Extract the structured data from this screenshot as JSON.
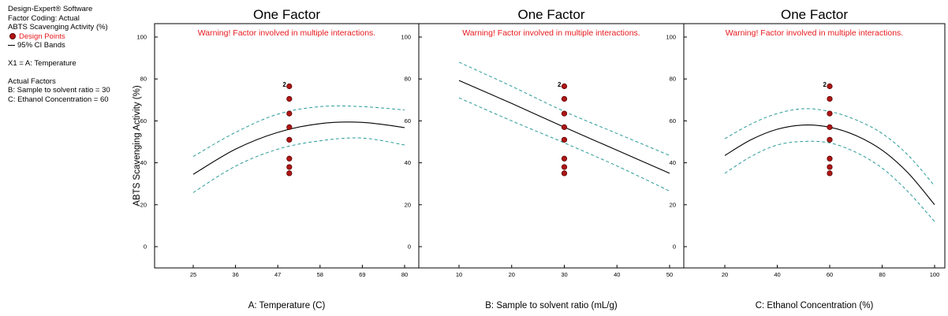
{
  "legend": {
    "software": "Design-Expert® Software",
    "coding": "Factor Coding: Actual",
    "response": "ABTS Scavenging Activity (%)",
    "design_points": "Design Points",
    "ci_bands": "95% CI Bands",
    "x1": "X1 = A: Temperature",
    "actual_factors": "Actual Factors",
    "factor_b": "B: Sample to solvent ratio = 30",
    "factor_c": "C: Ethanol Concentration  = 60"
  },
  "colors": {
    "fit_line": "#000000",
    "ci_band": "#2a9a9a",
    "design_point": "#b01515",
    "warning": "#e8191e"
  },
  "chart_data": [
    {
      "type": "line",
      "title": "One Factor",
      "warning": "Warning! Factor involved in multiple interactions.",
      "xlabel": "A: Temperature (C)",
      "ylabel": "ABTS Scavenging Activity (%)",
      "xlim": [
        25,
        80
      ],
      "ylim": [
        0,
        100
      ],
      "x_ticks": [
        25,
        36,
        47,
        58,
        69,
        80
      ],
      "y_ticks": [
        0,
        20,
        40,
        60,
        80,
        100
      ],
      "series": [
        {
          "role": "fit",
          "x": [
            25,
            36,
            47,
            58,
            69,
            80
          ],
          "y": [
            34.5,
            46.5,
            54.5,
            58.7,
            59.3,
            56.8
          ]
        },
        {
          "role": "ci_upper",
          "x": [
            25,
            36,
            47,
            58,
            69,
            80
          ],
          "y": [
            43.0,
            54.5,
            63.2,
            66.8,
            66.8,
            65.2
          ]
        },
        {
          "role": "ci_lower",
          "x": [
            25,
            36,
            47,
            58,
            69,
            80
          ],
          "y": [
            25.8,
            38.4,
            46.5,
            50.5,
            51.8,
            48.5
          ]
        }
      ],
      "design_points": {
        "x": 50,
        "y": [
          76.5,
          70.5,
          63.5,
          57,
          51,
          42,
          38,
          35
        ]
      },
      "point_label": {
        "text": "2",
        "y": 77
      }
    },
    {
      "type": "line",
      "title": "One Factor",
      "warning": "Warning! Factor involved in multiple interactions.",
      "xlabel": "B: Sample to solvent ratio (mL/g)",
      "ylabel": "",
      "xlim": [
        10,
        50
      ],
      "ylim": [
        0,
        100
      ],
      "x_ticks": [
        10,
        20,
        30,
        40,
        50
      ],
      "y_ticks": [
        0,
        20,
        40,
        60,
        80,
        100
      ],
      "series": [
        {
          "role": "fit",
          "x": [
            10,
            20,
            30,
            40,
            50
          ],
          "y": [
            79.3,
            68.3,
            57.0,
            46.0,
            35.0
          ]
        },
        {
          "role": "ci_upper",
          "x": [
            10,
            20,
            30,
            40,
            50
          ],
          "y": [
            88.0,
            76.5,
            64.5,
            54.0,
            43.5
          ]
        },
        {
          "role": "ci_lower",
          "x": [
            10,
            20,
            30,
            40,
            50
          ],
          "y": [
            71.0,
            60.0,
            49.5,
            38.5,
            26.5
          ]
        }
      ],
      "design_points": {
        "x": 30,
        "y": [
          76.5,
          70.5,
          63.5,
          57,
          51,
          42,
          38,
          35
        ]
      },
      "point_label": {
        "text": "2",
        "y": 77
      }
    },
    {
      "type": "line",
      "title": "One Factor",
      "warning": "Warning! Factor involved in multiple interactions.",
      "xlabel": "C: Ethanol Concentration  (%)",
      "ylabel": "",
      "xlim": [
        20,
        100
      ],
      "ylim": [
        0,
        100
      ],
      "x_ticks": [
        20,
        40,
        60,
        80,
        100
      ],
      "y_ticks": [
        0,
        20,
        40,
        60,
        80,
        100
      ],
      "series": [
        {
          "role": "fit",
          "x": [
            20,
            30,
            40,
            50,
            60,
            70,
            80,
            90,
            100
          ],
          "y": [
            43.5,
            51.0,
            56.0,
            58.0,
            57.0,
            53.0,
            46.0,
            35.0,
            20.0
          ]
        },
        {
          "role": "ci_upper",
          "x": [
            20,
            30,
            40,
            50,
            60,
            70,
            80,
            90,
            100
          ],
          "y": [
            51.5,
            58.5,
            63.5,
            65.8,
            64.5,
            60.5,
            54.0,
            43.5,
            29.0
          ]
        },
        {
          "role": "ci_lower",
          "x": [
            20,
            30,
            40,
            50,
            60,
            70,
            80,
            90,
            100
          ],
          "y": [
            35.0,
            43.0,
            48.5,
            50.2,
            49.5,
            45.0,
            37.5,
            26.0,
            12.0
          ]
        }
      ],
      "design_points": {
        "x": 60,
        "y": [
          76.5,
          70.5,
          63.5,
          57,
          51,
          42,
          38,
          35
        ]
      },
      "point_label": {
        "text": "2",
        "y": 77
      }
    }
  ]
}
